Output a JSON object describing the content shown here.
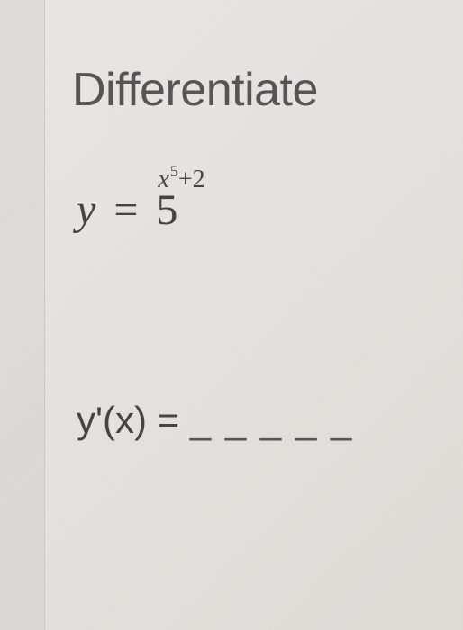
{
  "problem": {
    "title": "Differentiate",
    "equation": {
      "lhs_var": "y",
      "equals": "=",
      "base": "5",
      "exp_var": "x",
      "exp_power": "5",
      "exp_tail": "+2"
    },
    "answer": {
      "func": "y'(x)",
      "equals": "=",
      "blank": "_ _ _ _ _"
    }
  },
  "style": {
    "background_color": "#e8e6e3",
    "title_color": "#555555",
    "text_color": "#444444",
    "title_fontsize": 52,
    "equation_fontsize": 48,
    "answer_fontsize": 42,
    "superscript_fontsize": 28,
    "supersuperscript_fontsize": 18
  }
}
